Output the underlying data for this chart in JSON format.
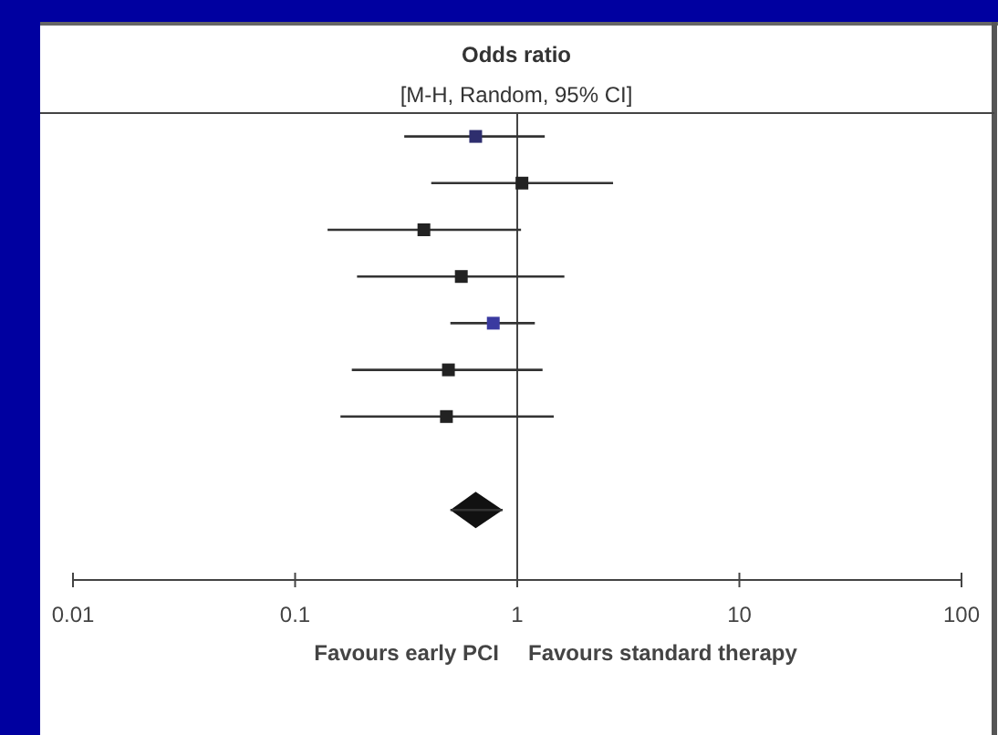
{
  "chart_data": {
    "type": "scatter",
    "orientation": "horizontal",
    "title": "Odds ratio",
    "subtitle": "[M-H, Random, 95% CI]",
    "categories": [
      null,
      null,
      null,
      null,
      null,
      null,
      null,
      null,
      null,
      null
    ],
    "series": [
      {
        "marker": "square",
        "values": [
          0.65,
          1.05,
          0.38,
          0.56,
          0.78,
          0.49,
          0.48,
          null,
          null,
          null
        ],
        "errors": [
          [
            0.31,
            1.33
          ],
          [
            0.41,
            2.7
          ],
          [
            0.14,
            1.04
          ],
          [
            0.19,
            1.63
          ],
          [
            0.5,
            1.2
          ],
          [
            0.18,
            1.3
          ],
          [
            0.16,
            1.46
          ],
          null,
          null,
          null
        ],
        "colors": [
          "#2e2e6e",
          "#222222",
          "#222222",
          "#222222",
          "#3a3aa0",
          "#222222",
          "#222222",
          null,
          null,
          null
        ]
      },
      {
        "marker": "diamond",
        "color": "#111111",
        "values": [
          null,
          null,
          null,
          null,
          null,
          null,
          null,
          null,
          0.65,
          null
        ],
        "errors": [
          null,
          null,
          null,
          null,
          null,
          null,
          null,
          null,
          [
            0.5,
            0.86
          ],
          null
        ]
      }
    ],
    "log": "x",
    "xlim": [
      0.01,
      100
    ],
    "xticks": [
      0.01,
      0.1,
      1,
      10,
      100
    ],
    "ref_lines": [
      {
        "axis": "x",
        "value": 1,
        "color": "#444444"
      }
    ],
    "annotations": [
      "Favours early PCI",
      "Favours standard therapy"
    ],
    "grid": false
  }
}
